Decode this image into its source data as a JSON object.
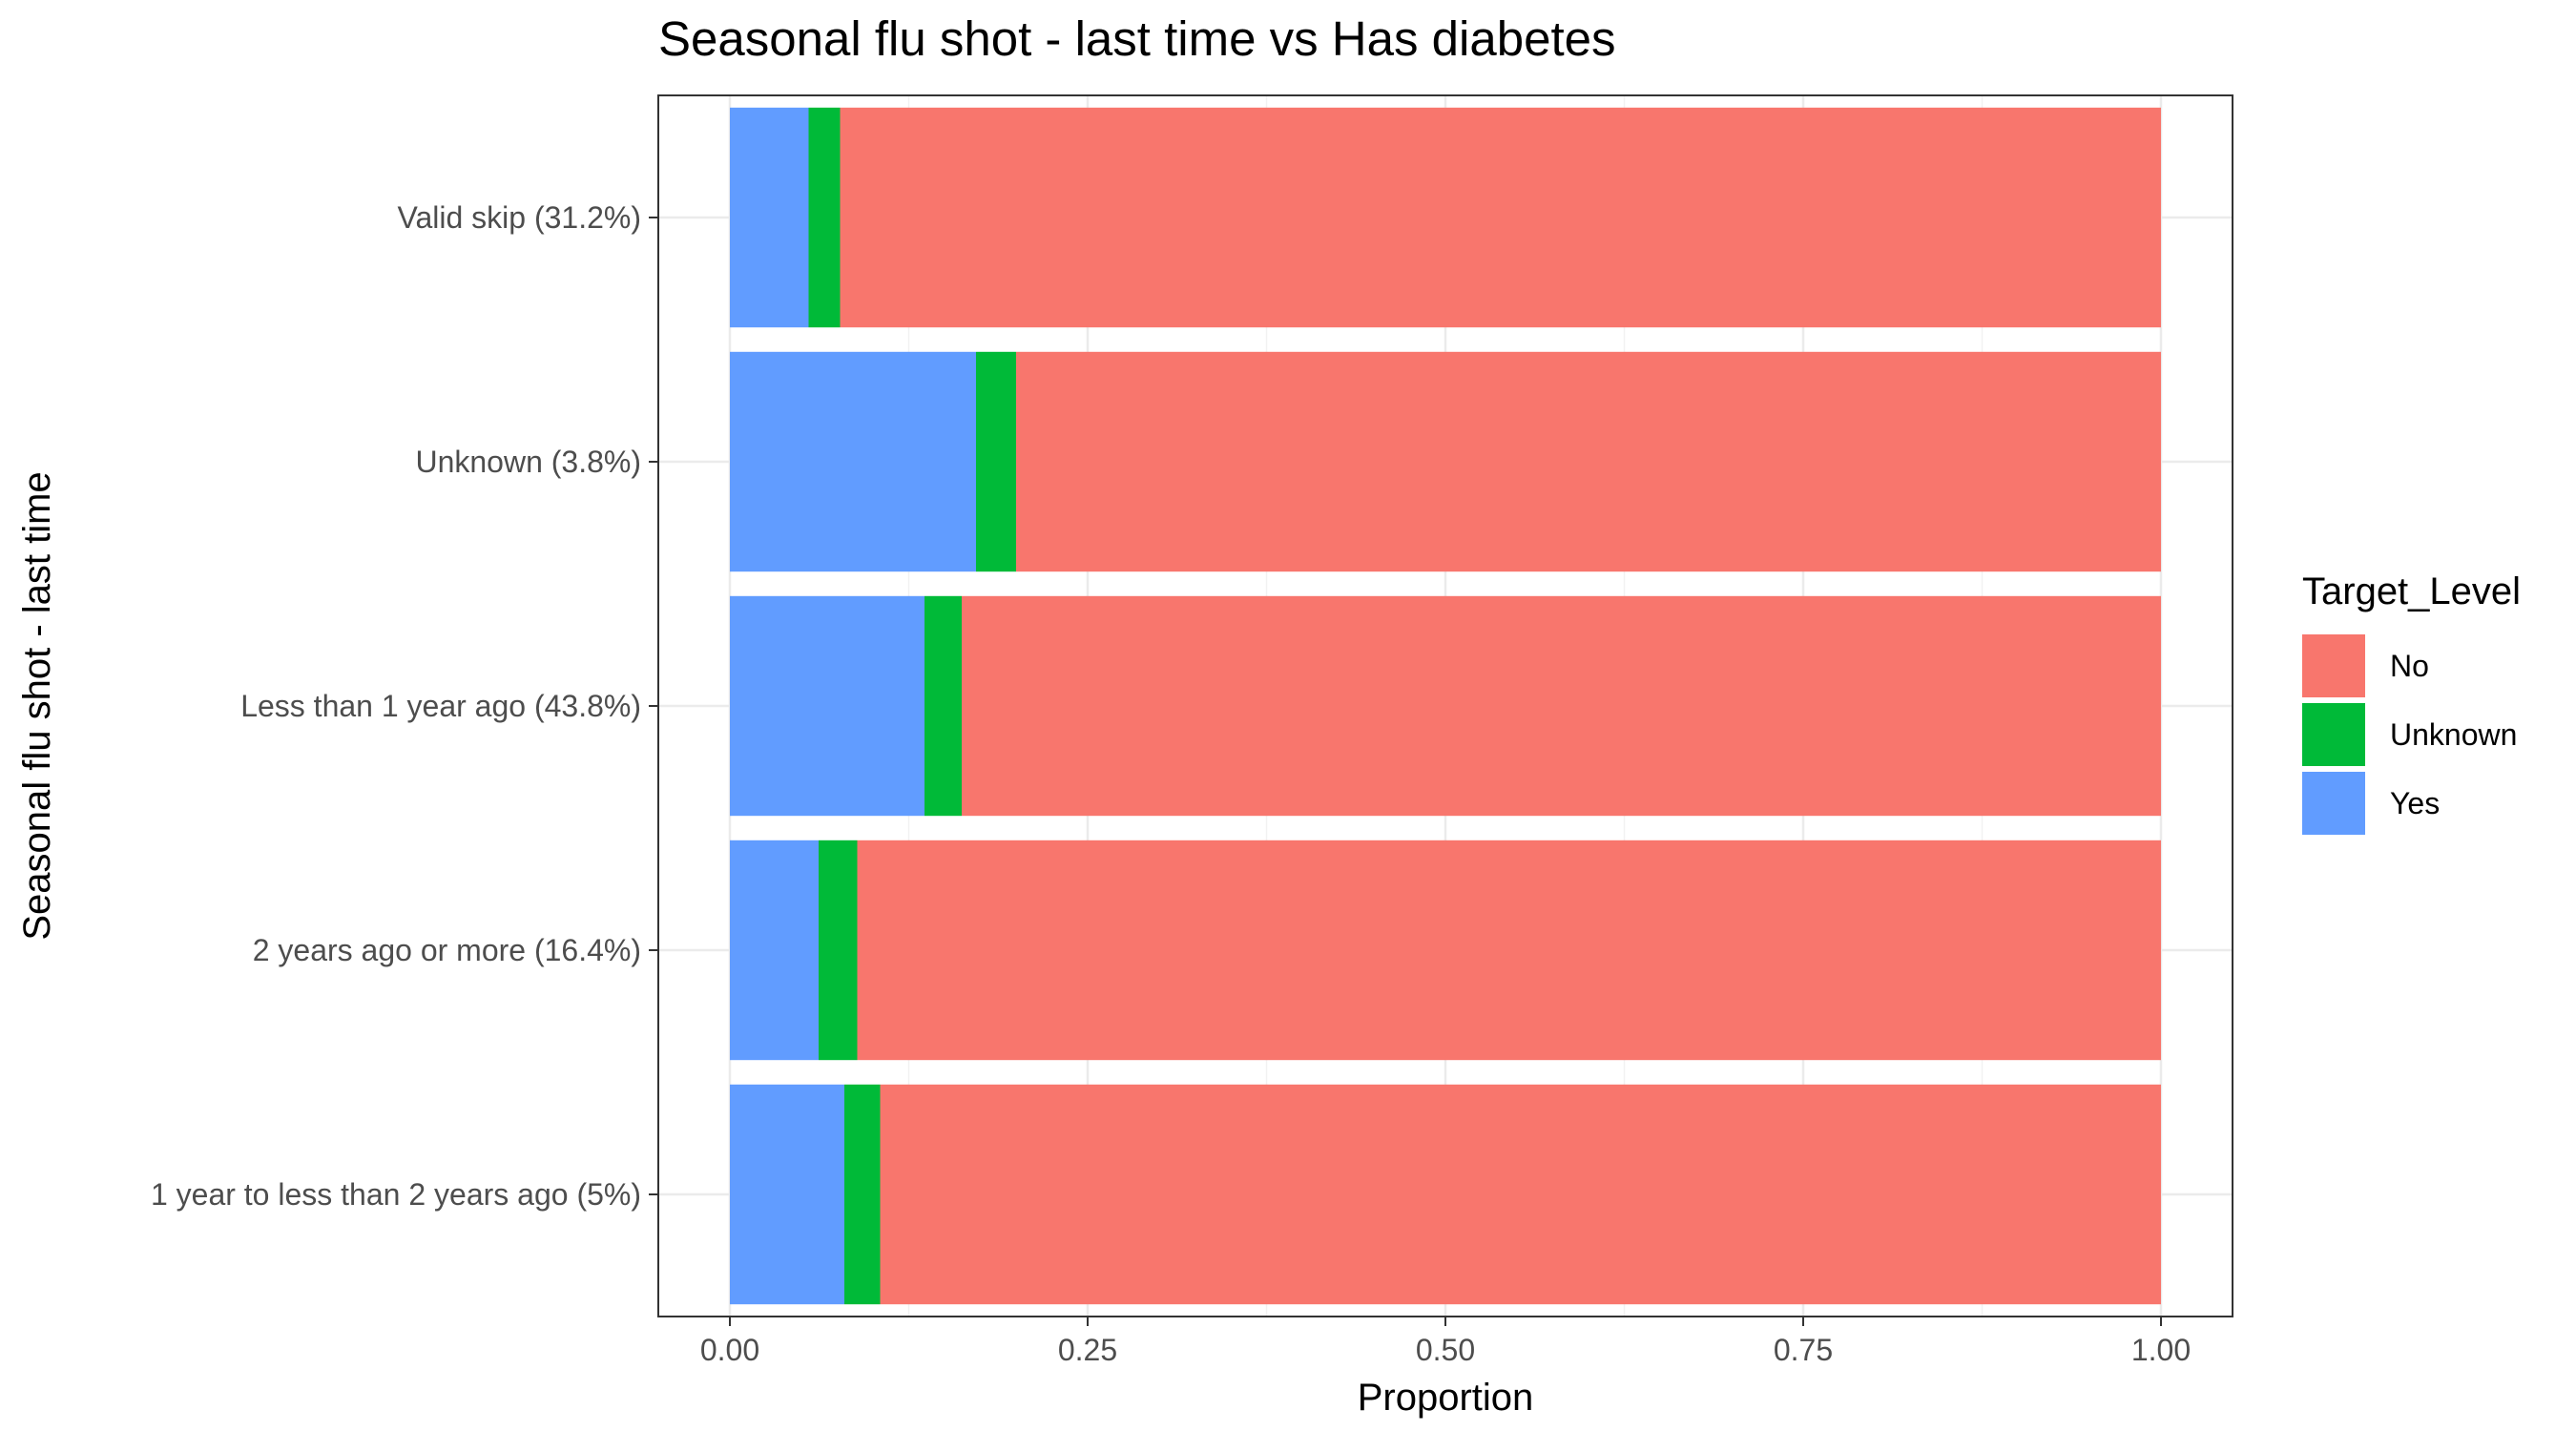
{
  "chart_data": {
    "type": "bar",
    "orientation": "horizontal",
    "stacked": true,
    "title": "Seasonal flu shot - last time vs Has diabetes",
    "xlabel": "Proportion",
    "ylabel": "Seasonal flu shot - last time",
    "xlim": [
      0,
      1
    ],
    "xticks": [
      "0.00",
      "0.25",
      "0.50",
      "0.75",
      "1.00"
    ],
    "grid": true,
    "legend_position": "right",
    "legend_title": "Target_Level",
    "categories": [
      "Valid skip (31.2%)",
      "Unknown (3.8%)",
      "Less than 1 year ago (43.8%)",
      "2 years ago or more (16.4%)",
      "1 year to less than 2 years ago (5%)"
    ],
    "series": [
      {
        "name": "Yes",
        "color": "#619CFF",
        "values": [
          0.055,
          0.172,
          0.136,
          0.062,
          0.08
        ]
      },
      {
        "name": "Unknown",
        "color": "#00BA38",
        "values": [
          0.022,
          0.028,
          0.026,
          0.027,
          0.025
        ]
      },
      {
        "name": "No",
        "color": "#F8766D",
        "values": [
          0.923,
          0.8,
          0.838,
          0.911,
          0.895
        ]
      }
    ],
    "legend_order": [
      "No",
      "Unknown",
      "Yes"
    ]
  }
}
